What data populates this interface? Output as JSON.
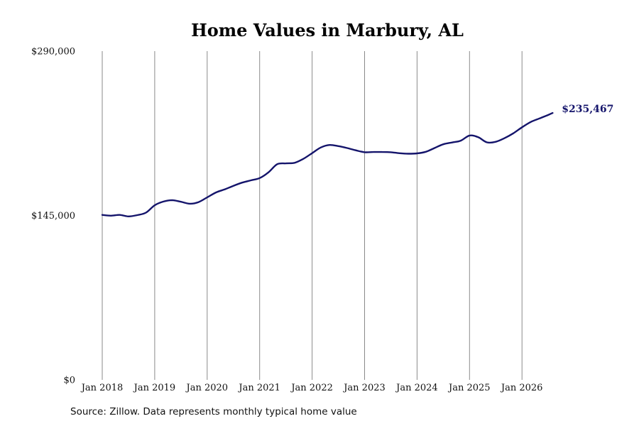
{
  "chart_data": {
    "type": "line",
    "title": "Home Values in Marbury, AL",
    "xlabel": "",
    "ylabel": "",
    "ylim": [
      0,
      290000
    ],
    "xlim": [
      "2018-01",
      "2026-08"
    ],
    "y_ticks": [
      {
        "value": 0,
        "label": "$0"
      },
      {
        "value": 145000,
        "label": "$145,000"
      },
      {
        "value": 290000,
        "label": "$290,000"
      }
    ],
    "x_ticks": [
      {
        "value": "2018-01",
        "label": "Jan 2018"
      },
      {
        "value": "2019-01",
        "label": "Jan 2019"
      },
      {
        "value": "2020-01",
        "label": "Jan 2020"
      },
      {
        "value": "2021-01",
        "label": "Jan 2021"
      },
      {
        "value": "2022-01",
        "label": "Jan 2022"
      },
      {
        "value": "2023-01",
        "label": "Jan 2023"
      },
      {
        "value": "2024-01",
        "label": "Jan 2024"
      },
      {
        "value": "2025-01",
        "label": "Jan 2025"
      },
      {
        "value": "2026-01",
        "label": "Jan 2026"
      }
    ],
    "grid": "vertical",
    "line_color": "#14146b",
    "end_label": "$235,467",
    "series": [
      {
        "x": [
          "2018-01",
          "2018-03",
          "2018-05",
          "2018-07",
          "2018-09",
          "2018-11",
          "2019-01",
          "2019-03",
          "2019-05",
          "2019-07",
          "2019-09",
          "2019-11",
          "2020-01",
          "2020-03",
          "2020-05",
          "2020-07",
          "2020-09",
          "2020-11",
          "2021-01",
          "2021-03",
          "2021-05",
          "2021-07",
          "2021-09",
          "2021-11",
          "2022-01",
          "2022-03",
          "2022-05",
          "2022-07",
          "2022-09",
          "2022-11",
          "2023-01",
          "2023-03",
          "2023-05",
          "2023-07",
          "2023-09",
          "2023-11",
          "2024-01",
          "2024-03",
          "2024-05",
          "2024-07",
          "2024-09",
          "2024-11",
          "2025-01",
          "2025-03",
          "2025-05",
          "2025-07",
          "2025-09",
          "2025-11",
          "2026-01",
          "2026-03",
          "2026-05",
          "2026-07",
          "2026-08"
        ],
        "y": [
          145500,
          144800,
          145500,
          144200,
          145300,
          147500,
          154000,
          157300,
          158500,
          157100,
          155400,
          156800,
          161000,
          165300,
          168000,
          171200,
          174000,
          176000,
          178000,
          183000,
          190200,
          191000,
          191500,
          195000,
          200000,
          205000,
          207200,
          206200,
          204500,
          202500,
          200800,
          201000,
          201000,
          200800,
          199900,
          199500,
          199800,
          201200,
          204500,
          207800,
          209400,
          211000,
          215500,
          214000,
          209500,
          210000,
          213200,
          217500,
          222800,
          227500,
          230600,
          233700,
          235467
        ]
      }
    ]
  },
  "source_note": "Source: Zillow. Data represents monthly typical home value"
}
